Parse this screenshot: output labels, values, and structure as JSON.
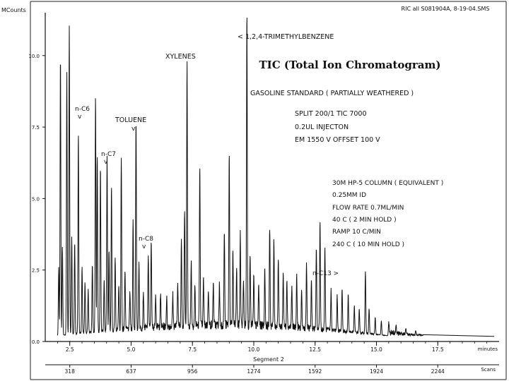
{
  "header": {
    "ylabel": "MCounts",
    "file": "RIC all S081904A,  8-19-04.SMS"
  },
  "overlay_title": "TIC (Total Ion Chromatogram)",
  "annotations": {
    "tmb": "< 1,2,4-TRIMETHYLBENZENE",
    "xylenes": "XYLENES",
    "toluene": "TOLUENE",
    "nc6": "n-C6",
    "nc7": "n-C7",
    "nc8": "n-C8",
    "nc13": "n-C13 >",
    "caret": "v"
  },
  "method_text": {
    "standard": "GASOLINE STANDARD ( PARTIALLY WEATHERED )",
    "split": "SPLIT 200/1 TIC 7000",
    "injection": "0.2UL INJECTON",
    "em": "EM 1550 V  OFFSET 100 V",
    "column": "30M HP-5 COLUMN  ( EQUIVALENT )",
    "id": "0.25MM ID",
    "flow": "FLOW RATE 0.7ML/MIN",
    "hold1": "40 C ( 2 MIN HOLD )",
    "ramp": "RAMP 10 C/MIN",
    "hold2": "240 C ( 10 MIN HOLD )"
  },
  "x_axis": {
    "ticks": [
      "2.5",
      "5.0",
      "7.5",
      "10.0",
      "12.5",
      "15.0",
      "17.5"
    ],
    "unit": "minutes",
    "segment": "Segment 2",
    "scan_ticks": [
      "318",
      "637",
      "956",
      "1274",
      "1592",
      "1924",
      "2244"
    ],
    "scan_unit": "Scans"
  },
  "y_axis": {
    "ticks": [
      "0.0",
      "2.5",
      "5.0",
      "7.5",
      "10.0"
    ]
  },
  "chart_data": {
    "type": "line",
    "title": "",
    "xlabel": "minutes",
    "ylabel": "MCounts",
    "xlim": [
      1.5,
      20.0
    ],
    "ylim": [
      0.0,
      11.5
    ],
    "x_ticks": [
      2.5,
      5.0,
      7.5,
      10.0,
      12.5,
      15.0,
      17.5
    ],
    "y_ticks": [
      0.0,
      2.5,
      5.0,
      7.5,
      10.0
    ],
    "scan_ticks": [
      {
        "time": 2.5,
        "scan": 318
      },
      {
        "time": 5.0,
        "scan": 637
      },
      {
        "time": 7.5,
        "scan": 956
      },
      {
        "time": 10.0,
        "scan": 1274
      },
      {
        "time": 12.5,
        "scan": 1592
      },
      {
        "time": 15.0,
        "scan": 1924
      },
      {
        "time": 17.5,
        "scan": 2244
      }
    ],
    "grid": false,
    "baseline": 0.2,
    "peaks": [
      {
        "x": 2.05,
        "y": 2.6
      },
      {
        "x": 2.12,
        "y": 10.0
      },
      {
        "x": 2.2,
        "y": 3.3
      },
      {
        "x": 2.38,
        "y": 9.4
      },
      {
        "x": 2.48,
        "y": 11.0
      },
      {
        "x": 2.58,
        "y": 3.6
      },
      {
        "x": 2.7,
        "y": 3.4
      },
      {
        "x": 2.85,
        "y": 7.2
      },
      {
        "x": 3.0,
        "y": 2.5
      },
      {
        "x": 3.12,
        "y": 2.0
      },
      {
        "x": 3.25,
        "y": 1.7
      },
      {
        "x": 3.42,
        "y": 2.6
      },
      {
        "x": 3.55,
        "y": 8.5
      },
      {
        "x": 3.62,
        "y": 6.4
      },
      {
        "x": 3.75,
        "y": 6.0
      },
      {
        "x": 3.9,
        "y": 2.0
      },
      {
        "x": 4.02,
        "y": 6.3
      },
      {
        "x": 4.1,
        "y": 3.0
      },
      {
        "x": 4.2,
        "y": 5.3
      },
      {
        "x": 4.35,
        "y": 2.8
      },
      {
        "x": 4.5,
        "y": 1.8
      },
      {
        "x": 4.6,
        "y": 6.3
      },
      {
        "x": 4.75,
        "y": 2.3
      },
      {
        "x": 4.95,
        "y": 1.5
      },
      {
        "x": 5.08,
        "y": 4.0
      },
      {
        "x": 5.2,
        "y": 7.5
      },
      {
        "x": 5.32,
        "y": 2.5
      },
      {
        "x": 5.5,
        "y": 1.5
      },
      {
        "x": 5.7,
        "y": 2.8
      },
      {
        "x": 5.82,
        "y": 3.3
      },
      {
        "x": 6.0,
        "y": 1.4
      },
      {
        "x": 6.2,
        "y": 1.3
      },
      {
        "x": 6.45,
        "y": 1.2
      },
      {
        "x": 6.7,
        "y": 1.3
      },
      {
        "x": 6.9,
        "y": 1.8
      },
      {
        "x": 7.05,
        "y": 3.3
      },
      {
        "x": 7.18,
        "y": 4.3
      },
      {
        "x": 7.28,
        "y": 9.6
      },
      {
        "x": 7.45,
        "y": 2.5
      },
      {
        "x": 7.6,
        "y": 1.6
      },
      {
        "x": 7.8,
        "y": 5.8
      },
      {
        "x": 7.95,
        "y": 1.8
      },
      {
        "x": 8.15,
        "y": 1.5
      },
      {
        "x": 8.35,
        "y": 1.7
      },
      {
        "x": 8.6,
        "y": 1.6
      },
      {
        "x": 8.8,
        "y": 3.5
      },
      {
        "x": 9.0,
        "y": 6.3
      },
      {
        "x": 9.15,
        "y": 2.8
      },
      {
        "x": 9.3,
        "y": 2.2
      },
      {
        "x": 9.45,
        "y": 3.4
      },
      {
        "x": 9.58,
        "y": 1.8
      },
      {
        "x": 9.72,
        "y": 11.3
      },
      {
        "x": 9.85,
        "y": 2.8
      },
      {
        "x": 10.0,
        "y": 1.9
      },
      {
        "x": 10.2,
        "y": 1.6
      },
      {
        "x": 10.45,
        "y": 2.2
      },
      {
        "x": 10.65,
        "y": 3.7
      },
      {
        "x": 10.82,
        "y": 3.2
      },
      {
        "x": 11.0,
        "y": 2.6
      },
      {
        "x": 11.2,
        "y": 2.1
      },
      {
        "x": 11.35,
        "y": 1.9
      },
      {
        "x": 11.55,
        "y": 1.6
      },
      {
        "x": 11.75,
        "y": 2.0
      },
      {
        "x": 11.95,
        "y": 1.4
      },
      {
        "x": 12.15,
        "y": 2.4
      },
      {
        "x": 12.35,
        "y": 1.9
      },
      {
        "x": 12.55,
        "y": 3.0
      },
      {
        "x": 12.7,
        "y": 4.0
      },
      {
        "x": 12.9,
        "y": 3.1
      },
      {
        "x": 13.15,
        "y": 1.6
      },
      {
        "x": 13.4,
        "y": 1.4
      },
      {
        "x": 13.6,
        "y": 1.7
      },
      {
        "x": 13.85,
        "y": 1.5
      },
      {
        "x": 14.1,
        "y": 1.1
      },
      {
        "x": 14.3,
        "y": 1.0
      },
      {
        "x": 14.55,
        "y": 2.4
      },
      {
        "x": 14.7,
        "y": 1.1
      },
      {
        "x": 14.95,
        "y": 0.8
      },
      {
        "x": 15.2,
        "y": 0.7
      },
      {
        "x": 15.5,
        "y": 0.6
      },
      {
        "x": 15.8,
        "y": 0.5
      },
      {
        "x": 16.2,
        "y": 0.4
      },
      {
        "x": 16.6,
        "y": 0.35
      }
    ]
  }
}
